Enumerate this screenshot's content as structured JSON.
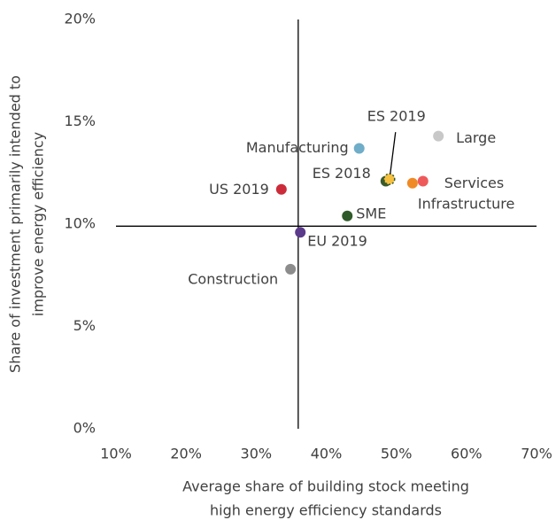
{
  "chart_data": {
    "type": "scatter",
    "x_label": [
      "Average share of building stock meeting",
      "high energy efficiency standards"
    ],
    "y_label": [
      "Share of investment primarily intended to",
      "improve energy efficiency"
    ],
    "xlim": [
      10,
      70
    ],
    "xticks": [
      {
        "value": 10,
        "label": "10%"
      },
      {
        "value": 20,
        "label": "20%"
      },
      {
        "value": 30,
        "label": "30%"
      },
      {
        "value": 40,
        "label": "40%"
      },
      {
        "value": 50,
        "label": "50%"
      },
      {
        "value": 60,
        "label": "60%"
      },
      {
        "value": 70,
        "label": "70%"
      }
    ],
    "ylim": [
      0,
      20
    ],
    "yticks": [
      {
        "value": 0,
        "label": "0%"
      },
      {
        "value": 5,
        "label": "5%"
      },
      {
        "value": 10,
        "label": "10%"
      },
      {
        "value": 15,
        "label": "15%"
      },
      {
        "value": 20,
        "label": "20%"
      }
    ],
    "reference_lines": {
      "x": 36,
      "y": 9.9
    },
    "points": [
      {
        "label": "Manufacturing",
        "color": "#6fadc8",
        "x": 44.7,
        "y": 13.7
      },
      {
        "label": "Large",
        "color": "#c8c8c8",
        "x": 56.0,
        "y": 14.3
      },
      {
        "label": "ES 2018",
        "color": "#3a5a2a",
        "x": 48.5,
        "y": 12.1
      },
      {
        "label": "ES 2019",
        "color": "#f5c040",
        "x": 49.0,
        "y": 12.2
      },
      {
        "label": "Infrastructure",
        "color": "#f08a24",
        "x": 52.3,
        "y": 12.0
      },
      {
        "label": "Services",
        "color": "#ee5a5a",
        "x": 53.8,
        "y": 12.1
      },
      {
        "label": "US 2019",
        "color": "#cc2c3a",
        "x": 33.6,
        "y": 11.7
      },
      {
        "label": "SME",
        "color": "#2f5a2a",
        "x": 43.0,
        "y": 10.4
      },
      {
        "label": "EU 2019",
        "color": "#5b3a8c",
        "x": 36.3,
        "y": 9.6
      },
      {
        "label": "Construction",
        "color": "#8c8c8c",
        "x": 34.9,
        "y": 7.8
      }
    ]
  }
}
